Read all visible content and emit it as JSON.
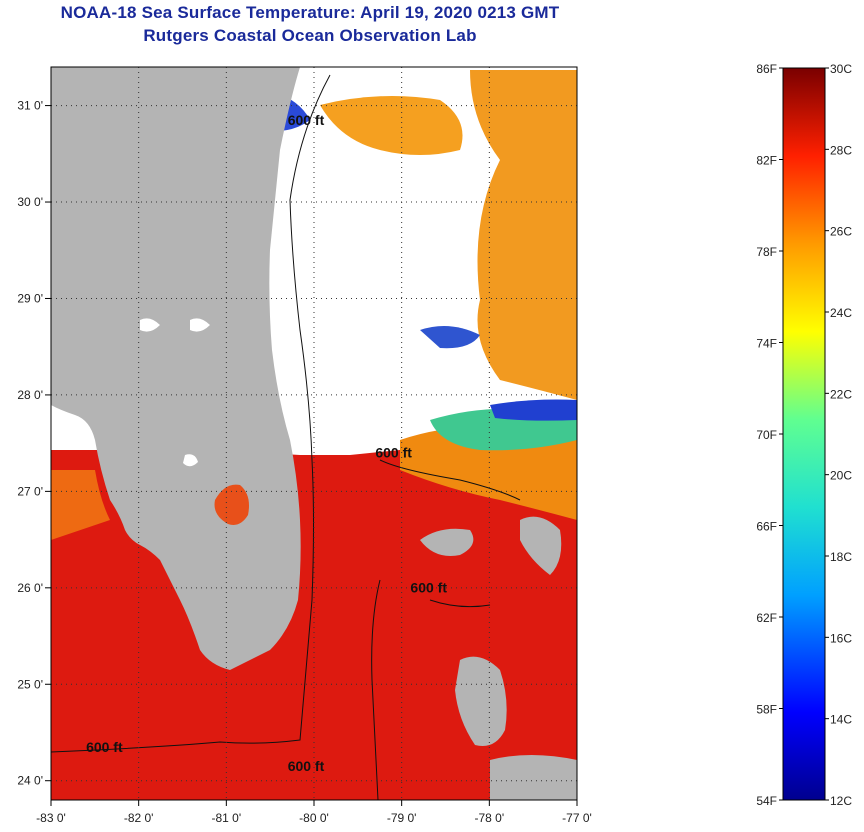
{
  "header": {
    "title": "NOAA-18 Sea Surface Temperature:  April 19, 2020 0213 GMT",
    "subtitle": "Rutgers Coastal Ocean Observation Lab"
  },
  "map": {
    "lon_range": [
      -83,
      -77
    ],
    "lat_range": [
      23.8,
      31.4
    ],
    "x_ticks": [
      {
        "lon": -83,
        "label": "-83 0'"
      },
      {
        "lon": -82,
        "label": "-82 0'"
      },
      {
        "lon": -81,
        "label": "-81 0'"
      },
      {
        "lon": -80,
        "label": "-80 0'"
      },
      {
        "lon": -79,
        "label": "-79 0'"
      },
      {
        "lon": -78,
        "label": "-78 0'"
      },
      {
        "lon": -77,
        "label": "-77 0'"
      }
    ],
    "y_ticks": [
      {
        "lat": 24,
        "label": "24 0'"
      },
      {
        "lat": 25,
        "label": "25 0'"
      },
      {
        "lat": 26,
        "label": "26 0'"
      },
      {
        "lat": 27,
        "label": "27 0'"
      },
      {
        "lat": 28,
        "label": "28 0'"
      },
      {
        "lat": 29,
        "label": "29 0'"
      },
      {
        "lat": 30,
        "label": "30 0'"
      },
      {
        "lat": 31,
        "label": "31 0'"
      }
    ],
    "contour_labels": [
      {
        "text": "600 ft",
        "lon": -79.3,
        "lat": 27.35
      },
      {
        "text": "600 ft",
        "lon": -78.9,
        "lat": 25.95
      },
      {
        "text": "600 ft",
        "lon": -82.6,
        "lat": 24.3
      },
      {
        "text": "600 ft",
        "lon": -80.3,
        "lat": 24.1
      },
      {
        "text": "600 ft",
        "lon": -80.3,
        "lat": 30.8
      }
    ],
    "colors": {
      "land": "#b4b4b4",
      "cloud": "#ffffff",
      "warm_water": "#dd1a10",
      "cool_water": "#f08a10",
      "cold_water": "#2040d0"
    }
  },
  "colorbar": {
    "fahrenheit_labels": [
      "86F",
      "82F",
      "78F",
      "74F",
      "70F",
      "66F",
      "62F",
      "58F",
      "54F"
    ],
    "celsius_labels": [
      "30C",
      "28C",
      "26C",
      "24C",
      "22C",
      "20C",
      "18C",
      "16C",
      "14C",
      "12C"
    ],
    "f_range": [
      54,
      86
    ],
    "c_range": [
      12,
      30
    ]
  }
}
